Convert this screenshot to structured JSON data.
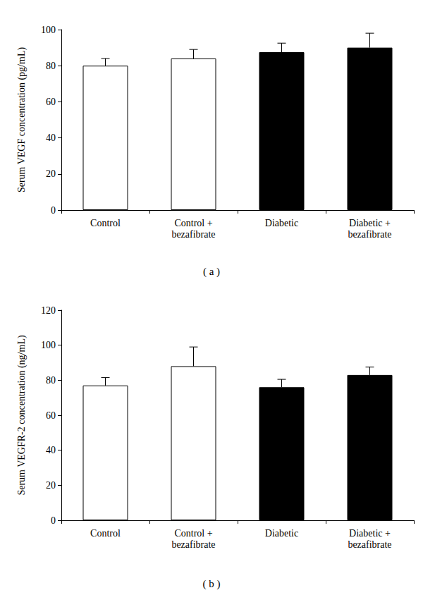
{
  "chart_data": [
    {
      "type": "bar",
      "title": "( a )",
      "y_label": "Serum VEGF concentration (pg/mL)",
      "categories": [
        "Control",
        "Control +\nbezafibrate",
        "Diabetic",
        "Diabetic +\nbezafibrate"
      ],
      "values": [
        80,
        84,
        87.5,
        90
      ],
      "errors": [
        4,
        5,
        5,
        8
      ],
      "colors": [
        "#ffffff",
        "#ffffff",
        "#000000",
        "#000000"
      ],
      "ylim": [
        0,
        100
      ],
      "yticks": [
        0,
        20,
        40,
        60,
        80,
        100
      ],
      "grid": false
    },
    {
      "type": "bar",
      "title": "( b )",
      "y_label": "Serum VEGFR-2 concentration (ng/mL)",
      "categories": [
        "Control",
        "Control +\nbezafibrate",
        "Diabetic",
        "Diabetic +\nbezafibrate"
      ],
      "values": [
        77,
        88,
        76,
        83
      ],
      "errors": [
        4.5,
        11,
        4.5,
        4.5
      ],
      "colors": [
        "#ffffff",
        "#ffffff",
        "#000000",
        "#000000"
      ],
      "ylim": [
        0,
        120
      ],
      "yticks": [
        0,
        20,
        40,
        60,
        80,
        100,
        120
      ],
      "grid": false
    }
  ]
}
